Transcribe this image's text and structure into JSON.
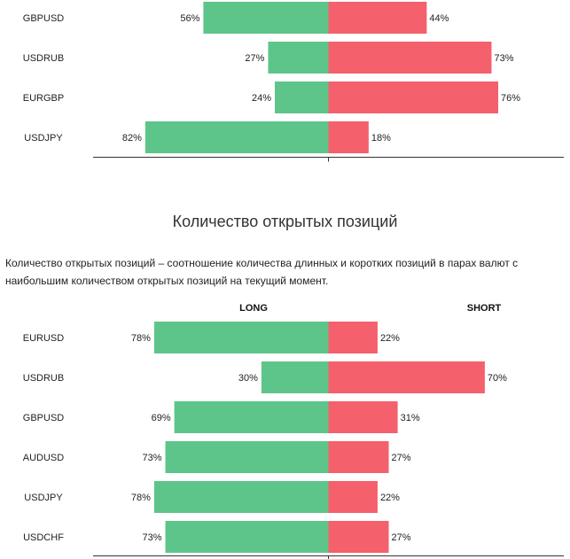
{
  "colors": {
    "long": "#5ec58a",
    "short": "#f4606c",
    "axis": "#333333"
  },
  "section": {
    "title": "Количество открытых позиций",
    "description": "Количество открытых позиций – соотношение количества длинных и коротких позиций в парах валют с наибольшим количеством открытых позиций на текущий момент."
  },
  "chart_data": [
    {
      "type": "bar",
      "orientation": "diverging-horizontal",
      "categories": [
        "GBPUSD",
        "USDRUB",
        "EURGBP",
        "USDJPY"
      ],
      "series": [
        {
          "values": [
            56,
            27,
            24,
            82
          ]
        },
        {
          "values": [
            44,
            73,
            76,
            18
          ]
        }
      ]
    },
    {
      "type": "bar",
      "orientation": "diverging-horizontal",
      "headers": {
        "long": "LONG",
        "short": "SHORT"
      },
      "categories": [
        "EURUSD",
        "USDRUB",
        "GBPUSD",
        "AUDUSD",
        "USDJPY",
        "USDCHF"
      ],
      "series": [
        {
          "name": "LONG",
          "values": [
            78,
            30,
            69,
            73,
            78,
            73
          ]
        },
        {
          "name": "SHORT",
          "values": [
            22,
            70,
            31,
            27,
            22,
            27
          ]
        }
      ]
    }
  ]
}
